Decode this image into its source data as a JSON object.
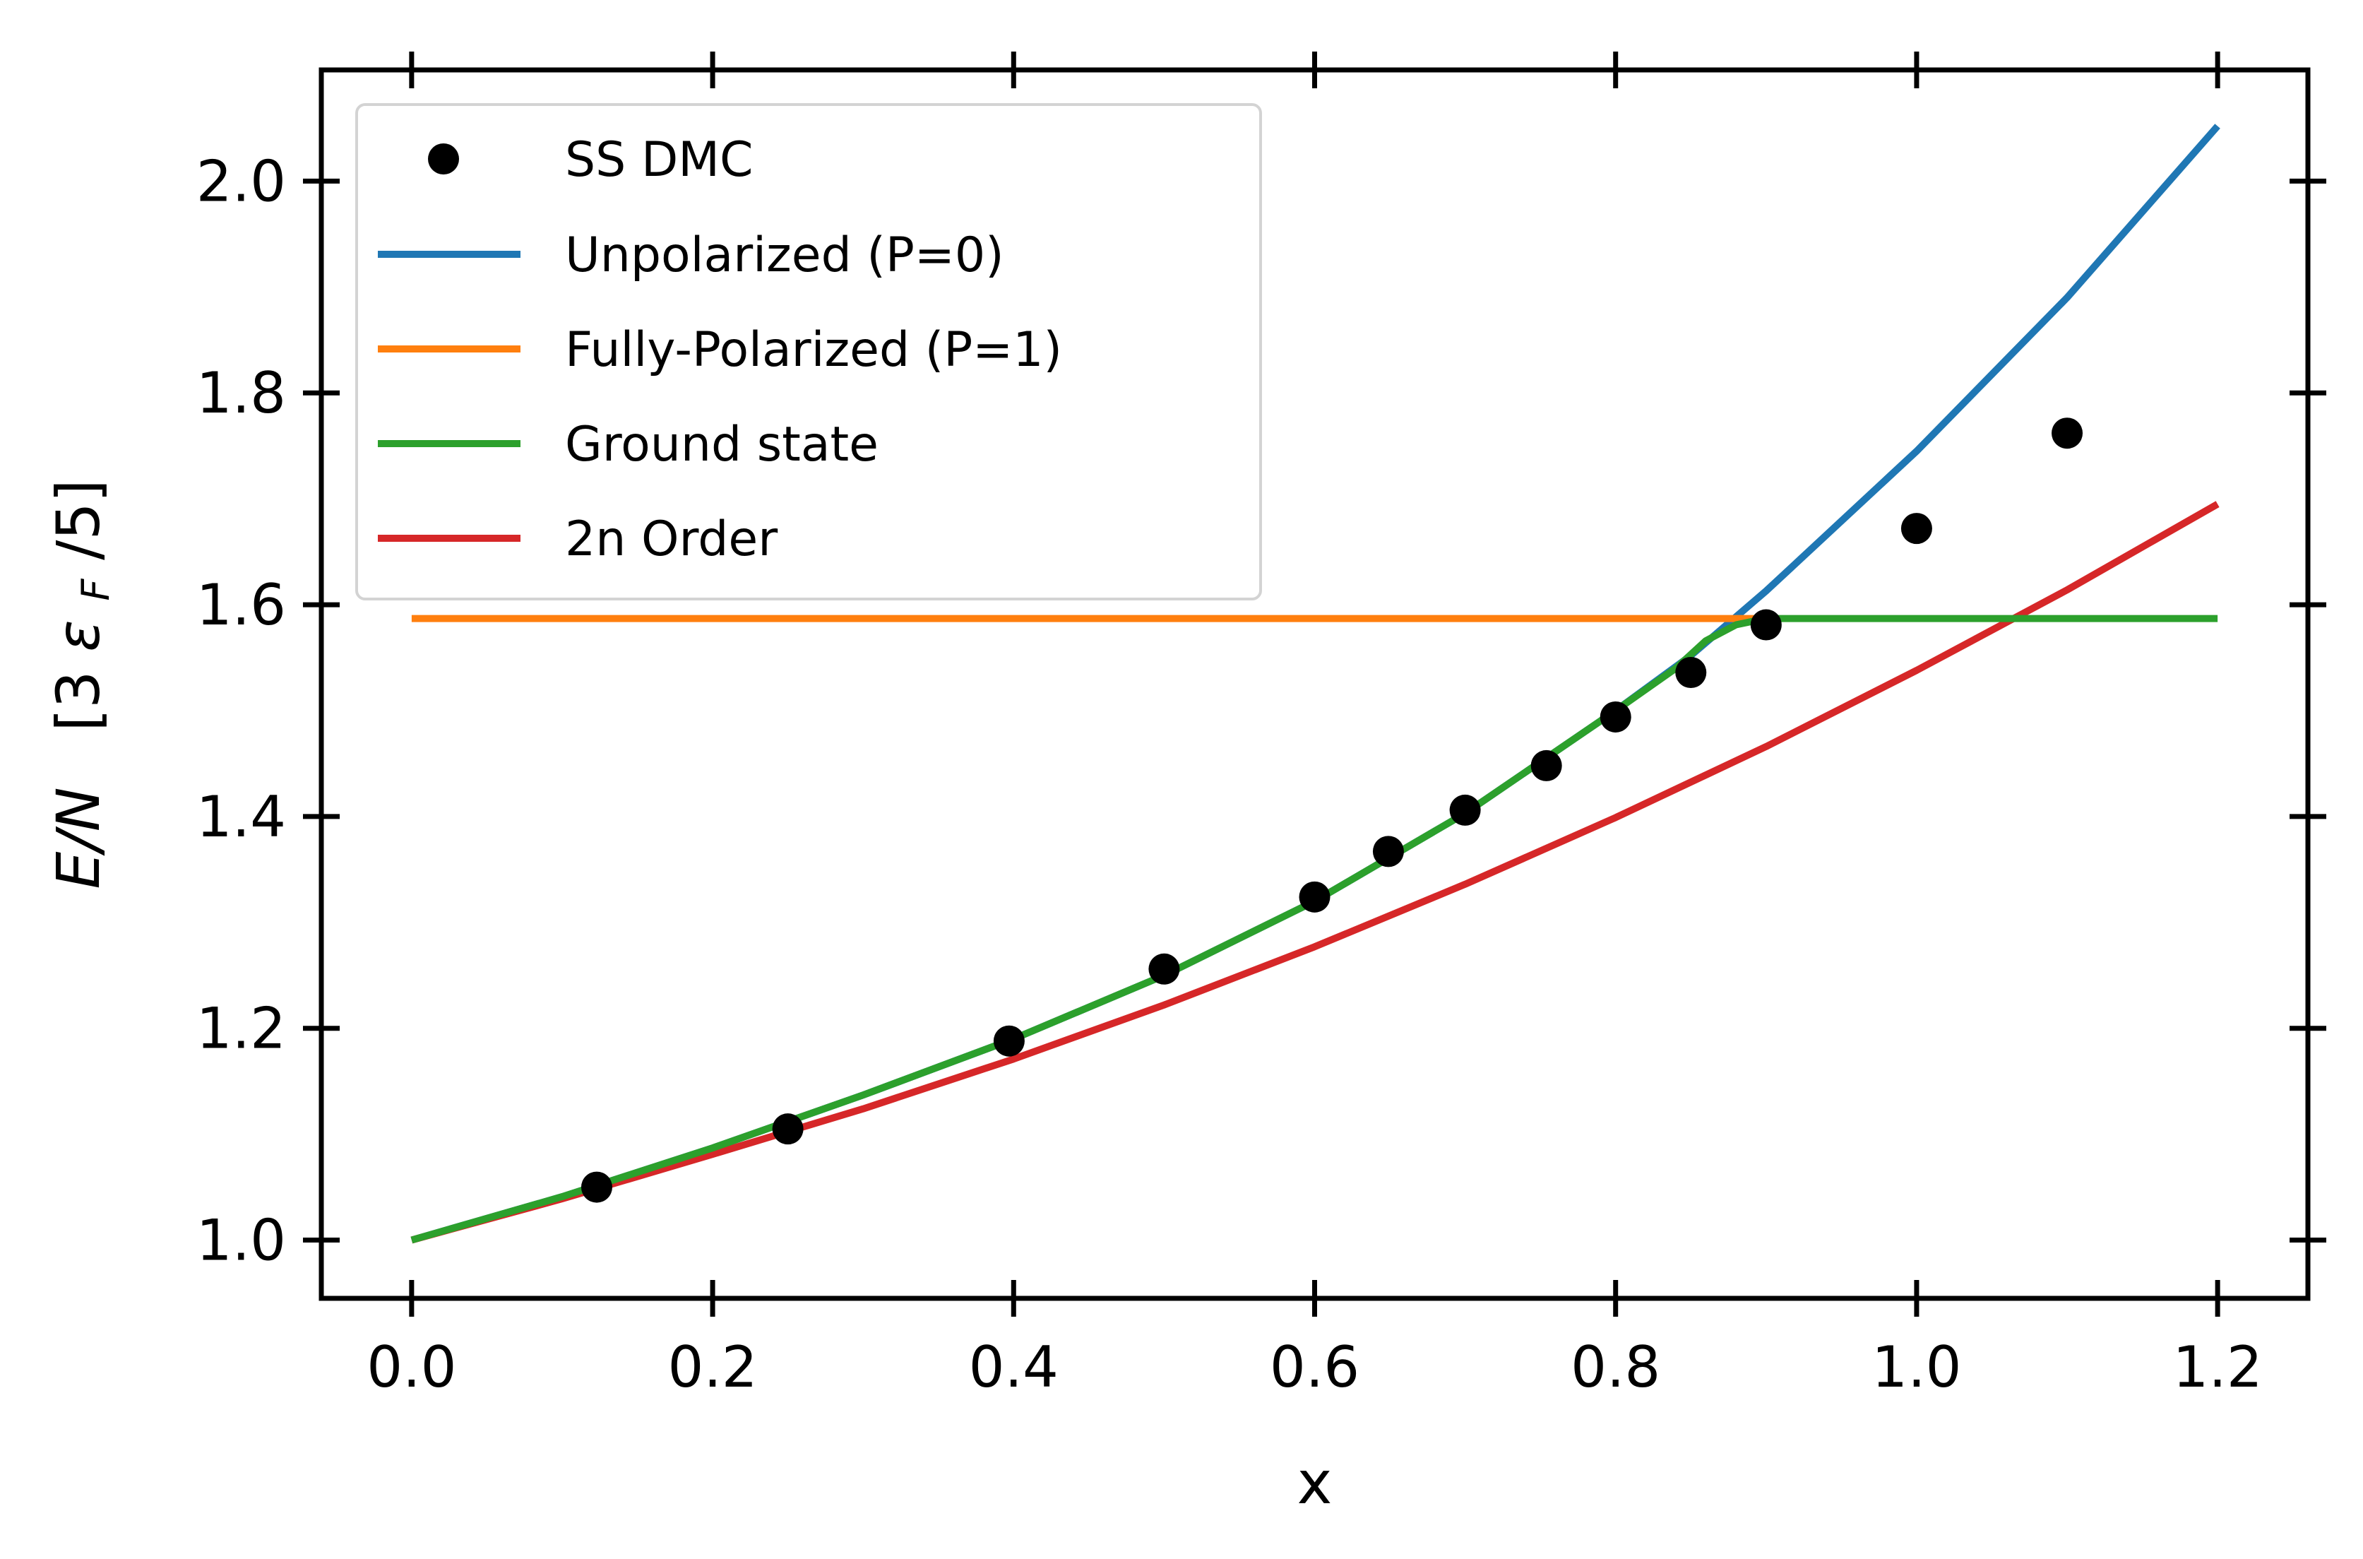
{
  "chart_data": {
    "type": "line",
    "title": "",
    "xlabel": "x",
    "ylabel_main": "E/N",
    "ylabel_unit_open": "[3",
    "ylabel_unit_eps": "ε",
    "ylabel_unit_sub": "F",
    "ylabel_unit_close": "/5]",
    "xlim": [
      -0.06,
      1.26
    ],
    "ylim": [
      0.945,
      2.105
    ],
    "xticks": [
      0.0,
      0.2,
      0.4,
      0.6,
      0.8,
      1.0,
      1.2
    ],
    "xtick_labels": [
      "0.0",
      "0.2",
      "0.4",
      "0.6",
      "0.8",
      "1.0",
      "1.2"
    ],
    "yticks": [
      1.0,
      1.2,
      1.4,
      1.6,
      1.8,
      2.0
    ],
    "ytick_labels": [
      "1.0",
      "1.2",
      "1.4",
      "1.6",
      "1.8",
      "2.0"
    ],
    "grid": false,
    "legend_position": "top-left",
    "series": [
      {
        "name": "SS DMC",
        "kind": "scatter",
        "color": "#000000",
        "x": [
          0.123,
          0.25,
          0.397,
          0.5,
          0.6,
          0.649,
          0.7,
          0.754,
          0.8,
          0.85,
          0.9,
          1.0,
          1.1
        ],
        "y": [
          1.05,
          1.105,
          1.188,
          1.256,
          1.324,
          1.367,
          1.406,
          1.448,
          1.494,
          1.536,
          1.581,
          1.672,
          1.762
        ]
      },
      {
        "name": "Unpolarized (P=0)",
        "kind": "line",
        "color": "#1f77b4",
        "x": [
          0.0,
          0.1,
          0.2,
          0.3,
          0.4,
          0.5,
          0.6,
          0.7,
          0.8,
          0.85,
          0.9,
          1.0,
          1.1,
          1.2
        ],
        "y": [
          1.0,
          1.041,
          1.087,
          1.137,
          1.19,
          1.25,
          1.32,
          1.403,
          1.5,
          1.552,
          1.613,
          1.745,
          1.89,
          2.052
        ]
      },
      {
        "name": "Fully-Polarized (P=1)",
        "kind": "line",
        "color": "#ff7f0e",
        "x": [
          0.0,
          0.9
        ],
        "y": [
          1.587,
          1.587
        ]
      },
      {
        "name": "Ground state",
        "kind": "line",
        "color": "#2ca02c",
        "x": [
          0.0,
          0.1,
          0.2,
          0.3,
          0.4,
          0.5,
          0.6,
          0.7,
          0.8,
          0.84,
          0.86,
          0.88,
          0.9,
          0.95,
          1.0,
          1.1,
          1.2
        ],
        "y": [
          1.0,
          1.041,
          1.087,
          1.137,
          1.19,
          1.25,
          1.32,
          1.403,
          1.5,
          1.54,
          1.566,
          1.581,
          1.587,
          1.587,
          1.587,
          1.587,
          1.587
        ]
      },
      {
        "name": "2n Order",
        "kind": "line",
        "color": "#d62728",
        "x": [
          0.0,
          0.1,
          0.2,
          0.3,
          0.4,
          0.5,
          0.6,
          0.7,
          0.8,
          0.9,
          1.0,
          1.1,
          1.2
        ],
        "y": [
          1.0,
          1.039,
          1.081,
          1.124,
          1.171,
          1.222,
          1.277,
          1.336,
          1.399,
          1.466,
          1.538,
          1.614,
          1.695
        ]
      }
    ]
  }
}
